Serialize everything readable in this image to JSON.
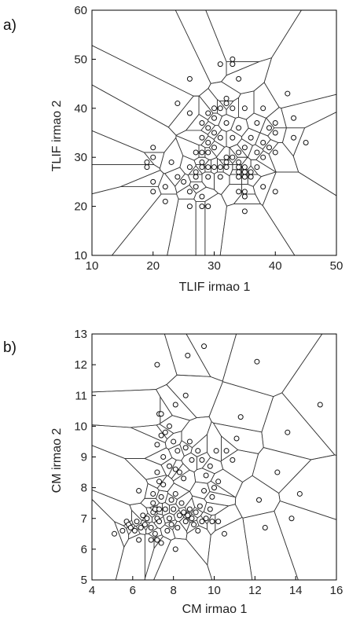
{
  "chart_data": [
    {
      "type": "scatter",
      "panel_label": "a)",
      "xlabel": "TLIF irmao 1",
      "ylabel": "TLIF irmao 2",
      "xlim": [
        10,
        50
      ],
      "ylim": [
        10,
        60
      ],
      "xticks": [
        10,
        20,
        30,
        40,
        50
      ],
      "yticks": [
        10,
        20,
        30,
        40,
        50,
        60
      ],
      "marker": "open-circle",
      "overlay": "voronoi",
      "points": [
        [
          19,
          28
        ],
        [
          19,
          29
        ],
        [
          20,
          30
        ],
        [
          20,
          32
        ],
        [
          20,
          23
        ],
        [
          20,
          25
        ],
        [
          22,
          21
        ],
        [
          22,
          24
        ],
        [
          23,
          29
        ],
        [
          24,
          26
        ],
        [
          24,
          41
        ],
        [
          25,
          25
        ],
        [
          26,
          20
        ],
        [
          26,
          23
        ],
        [
          26,
          28
        ],
        [
          26,
          46
        ],
        [
          26,
          39
        ],
        [
          27,
          27
        ],
        [
          27,
          31
        ],
        [
          27,
          24
        ],
        [
          27,
          26
        ],
        [
          28,
          20
        ],
        [
          28,
          22
        ],
        [
          28,
          28
        ],
        [
          28,
          34
        ],
        [
          28,
          29
        ],
        [
          28,
          37
        ],
        [
          28,
          31
        ],
        [
          29,
          20
        ],
        [
          29,
          26
        ],
        [
          29,
          28
        ],
        [
          29,
          31
        ],
        [
          29,
          33
        ],
        [
          29,
          36
        ],
        [
          29,
          39
        ],
        [
          30,
          28
        ],
        [
          30,
          32
        ],
        [
          30,
          40
        ],
        [
          30,
          35
        ],
        [
          30,
          38
        ],
        [
          31,
          26
        ],
        [
          31,
          28
        ],
        [
          31,
          34
        ],
        [
          31,
          40
        ],
        [
          31,
          49
        ],
        [
          32,
          30
        ],
        [
          32,
          29
        ],
        [
          32,
          28
        ],
        [
          32,
          37
        ],
        [
          32,
          41
        ],
        [
          32,
          42
        ],
        [
          33,
          30
        ],
        [
          33,
          34
        ],
        [
          33,
          40
        ],
        [
          33,
          50
        ],
        [
          33,
          49
        ],
        [
          34,
          26
        ],
        [
          34,
          23
        ],
        [
          34,
          27
        ],
        [
          34,
          28
        ],
        [
          34,
          29
        ],
        [
          34,
          31
        ],
        [
          34,
          36
        ],
        [
          34,
          46
        ],
        [
          35,
          22
        ],
        [
          35,
          23
        ],
        [
          35,
          19
        ],
        [
          35,
          26
        ],
        [
          35,
          27
        ],
        [
          35,
          28
        ],
        [
          35,
          32
        ],
        [
          35,
          40
        ],
        [
          36,
          26
        ],
        [
          36,
          27
        ],
        [
          36,
          34
        ],
        [
          37,
          28
        ],
        [
          37,
          31
        ],
        [
          37,
          37
        ],
        [
          38,
          24
        ],
        [
          38,
          30
        ],
        [
          38,
          33
        ],
        [
          38,
          40
        ],
        [
          39,
          32
        ],
        [
          39,
          36
        ],
        [
          40,
          23
        ],
        [
          40,
          31
        ],
        [
          40,
          35
        ],
        [
          40,
          37
        ],
        [
          42,
          43
        ],
        [
          43,
          38
        ],
        [
          43,
          34
        ],
        [
          45,
          33
        ]
      ]
    },
    {
      "type": "scatter",
      "panel_label": "b)",
      "xlabel": "CM irmao 1",
      "ylabel": "CM irmao 2",
      "xlim": [
        4,
        16
      ],
      "ylim": [
        5,
        13
      ],
      "xticks": [
        4,
        6,
        8,
        10,
        12,
        14,
        16
      ],
      "yticks": [
        5,
        6,
        7,
        8,
        9,
        10,
        11,
        12,
        13
      ],
      "marker": "open-circle",
      "overlay": "voronoi",
      "points": [
        [
          5.1,
          6.5
        ],
        [
          5.5,
          6.6
        ],
        [
          5.7,
          6.9
        ],
        [
          5.8,
          6.8
        ],
        [
          5.9,
          6.7
        ],
        [
          6.1,
          6.6
        ],
        [
          6.2,
          6.9
        ],
        [
          6.3,
          6.3
        ],
        [
          6.4,
          6.7
        ],
        [
          6.5,
          7.1
        ],
        [
          6.6,
          6.8
        ],
        [
          6.7,
          7.0
        ],
        [
          6.9,
          6.7
        ],
        [
          6.9,
          6.3
        ],
        [
          7.0,
          7.2
        ],
        [
          7.0,
          7.5
        ],
        [
          7.1,
          7.3
        ],
        [
          7.1,
          6.5
        ],
        [
          7.2,
          6.3
        ],
        [
          7.2,
          7.0
        ],
        [
          7.3,
          7.3
        ],
        [
          7.3,
          6.9
        ],
        [
          7.4,
          7.7
        ],
        [
          7.4,
          6.2
        ],
        [
          6.3,
          7.9
        ],
        [
          7.0,
          7.8
        ],
        [
          7.3,
          8.2
        ],
        [
          7.5,
          8.1
        ],
        [
          7.6,
          7.3
        ],
        [
          7.7,
          6.6
        ],
        [
          7.8,
          7.0
        ],
        [
          7.9,
          7.6
        ],
        [
          7.9,
          6.8
        ],
        [
          8.0,
          7.3
        ],
        [
          8.1,
          7.8
        ],
        [
          8.1,
          6.0
        ],
        [
          8.2,
          6.7
        ],
        [
          8.3,
          7.1
        ],
        [
          8.4,
          7.5
        ],
        [
          8.5,
          7.2
        ],
        [
          8.6,
          6.9
        ],
        [
          8.7,
          7.1
        ],
        [
          8.8,
          7.3
        ],
        [
          8.9,
          7.0
        ],
        [
          9.0,
          6.8
        ],
        [
          9.1,
          7.2
        ],
        [
          9.2,
          6.6
        ],
        [
          9.3,
          7.4
        ],
        [
          9.4,
          6.9
        ],
        [
          9.6,
          7.0
        ],
        [
          9.8,
          7.3
        ],
        [
          9.9,
          6.9
        ],
        [
          9.9,
          7.7
        ],
        [
          10.0,
          8.0
        ],
        [
          10.2,
          6.9
        ],
        [
          10.5,
          6.5
        ],
        [
          7.2,
          8.5
        ],
        [
          7.5,
          9.0
        ],
        [
          7.8,
          8.7
        ],
        [
          8.1,
          8.6
        ],
        [
          8.3,
          8.5
        ],
        [
          8.5,
          8.3
        ],
        [
          8.2,
          9.2
        ],
        [
          8.6,
          9.3
        ],
        [
          8.8,
          9.5
        ],
        [
          8.9,
          8.9
        ],
        [
          9.2,
          9.2
        ],
        [
          9.4,
          8.9
        ],
        [
          9.6,
          8.4
        ],
        [
          9.8,
          8.7
        ],
        [
          10.1,
          9.2
        ],
        [
          10.6,
          9.2
        ],
        [
          10.9,
          8.9
        ],
        [
          11.1,
          9.6
        ],
        [
          10.2,
          8.2
        ],
        [
          9.5,
          7.9
        ],
        [
          7.2,
          9.4
        ],
        [
          7.4,
          9.7
        ],
        [
          7.6,
          9.8
        ],
        [
          7.8,
          10.0
        ],
        [
          8.0,
          9.5
        ],
        [
          7.3,
          10.4
        ],
        [
          7.4,
          10.4
        ],
        [
          8.1,
          10.7
        ],
        [
          8.6,
          11.0
        ],
        [
          7.2,
          12.0
        ],
        [
          8.7,
          12.3
        ],
        [
          9.5,
          12.6
        ],
        [
          12.1,
          12.1
        ],
        [
          11.3,
          10.3
        ],
        [
          13.6,
          9.8
        ],
        [
          15.2,
          10.7
        ],
        [
          13.1,
          8.5
        ],
        [
          14.2,
          7.8
        ],
        [
          12.5,
          6.7
        ],
        [
          13.8,
          7.0
        ],
        [
          12.2,
          7.6
        ]
      ]
    }
  ]
}
